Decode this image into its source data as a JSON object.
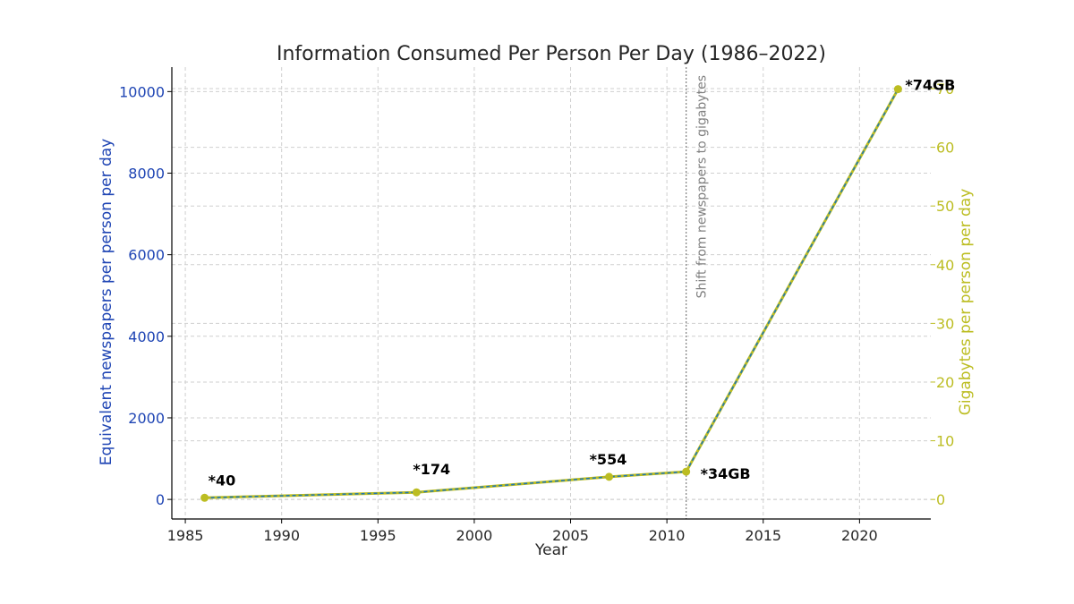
{
  "chart_data": {
    "type": "line",
    "title": "Information Consumed Per Person Per Day (1986–2022)",
    "xlabel": "Year",
    "ylabel_left": "Equivalent newspapers per person per day",
    "ylabel_right": "Gigabytes per person per day",
    "xlim": [
      1984.3,
      2023.7
    ],
    "ylim_left": [
      -480,
      10600
    ],
    "ylim_right": [
      -3.33,
      73.66
    ],
    "x_ticks": [
      1985,
      1990,
      1995,
      2000,
      2005,
      2010,
      2015,
      2020
    ],
    "y_left_ticks": [
      0,
      2000,
      4000,
      6000,
      8000,
      10000
    ],
    "y_right_ticks": [
      0,
      10,
      20,
      30,
      40,
      50,
      60,
      70
    ],
    "series": [
      {
        "name": "Information consumed",
        "x": [
          1986,
          1997,
          2007,
          2011,
          2022
        ],
        "y": [
          40,
          174,
          554,
          680,
          10060
        ]
      }
    ],
    "annotations": [
      {
        "text": "*40",
        "x": 1986,
        "y": 40
      },
      {
        "text": "*174",
        "x": 1997,
        "y": 174
      },
      {
        "text": "*554",
        "x": 2007,
        "y": 554
      },
      {
        "text": "*34GB",
        "x": 2011,
        "y": 680
      },
      {
        "text": "*74GB",
        "x": 2022,
        "y": 10060
      }
    ],
    "vline": {
      "x": 2011,
      "label": "Shift from newspapers to gigabytes"
    },
    "grid": true,
    "colors": {
      "left_axis": "#1f45b4",
      "right_axis": "#bcbd22",
      "line_main": "#bcbd22",
      "line_dash": "#1f77b4",
      "marker": "#bcbd22",
      "vline": "#808080"
    }
  }
}
